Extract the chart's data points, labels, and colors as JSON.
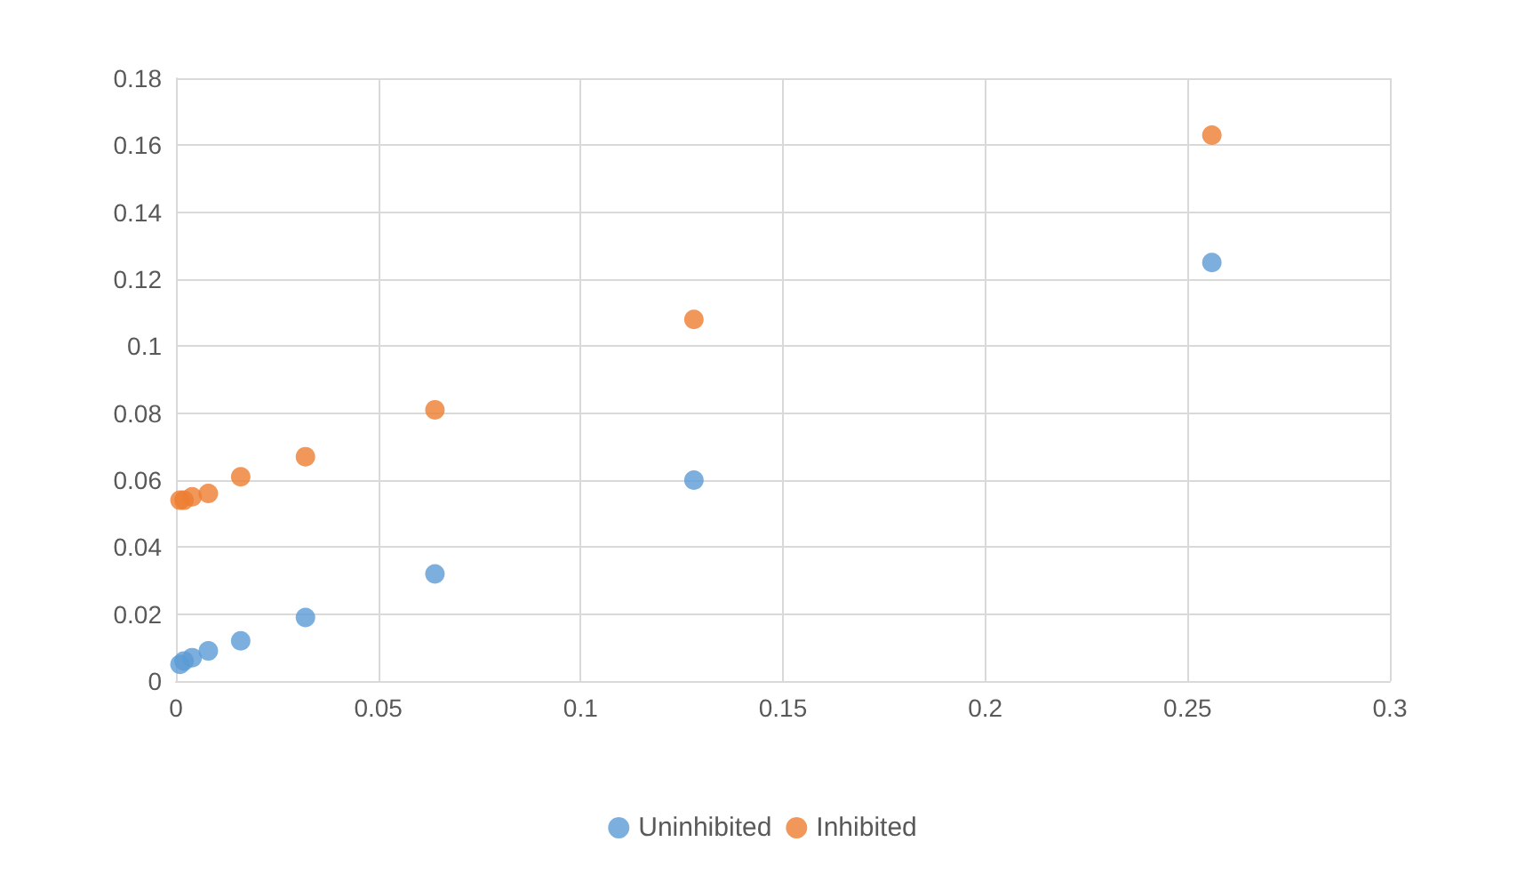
{
  "chart_data": {
    "type": "scatter",
    "x": [
      0.001,
      0.002,
      0.004,
      0.008,
      0.016,
      0.032,
      0.064,
      0.128,
      0.256
    ],
    "series": [
      {
        "name": "Uninhibited",
        "color": "#5b9bd5",
        "values": [
          0.005,
          0.006,
          0.007,
          0.009,
          0.012,
          0.019,
          0.032,
          0.06,
          0.125
        ]
      },
      {
        "name": "Inhibited",
        "color": "#ed7d31",
        "values": [
          0.054,
          0.054,
          0.055,
          0.056,
          0.061,
          0.067,
          0.081,
          0.108,
          0.163
        ]
      }
    ],
    "xlim": [
      0,
      0.3
    ],
    "xticks": [
      0,
      0.05,
      0.1,
      0.15,
      0.2,
      0.25,
      0.3
    ],
    "ylim": [
      0,
      0.18
    ],
    "yticks": [
      0,
      0.02,
      0.04,
      0.06,
      0.08,
      0.1,
      0.12,
      0.14,
      0.16,
      0.18
    ],
    "grid": true,
    "legend": "bottom",
    "marker": "circle"
  }
}
